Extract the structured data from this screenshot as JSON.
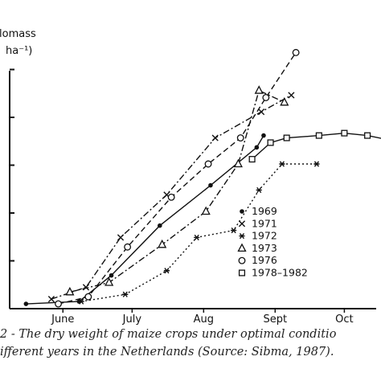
{
  "chart_data": {
    "type": "line",
    "ylabel_lines": [
      "lomass",
      "ha⁻¹)"
    ],
    "x_ticks": [
      "June",
      "July",
      "Aug",
      "Sept",
      "Oct"
    ],
    "x_range": [
      "May 25",
      "Oct 31"
    ],
    "y_range": [
      0,
      1
    ],
    "series": [
      {
        "name": "1969",
        "marker": "filled-circle",
        "dash": "solid",
        "points": [
          [
            "May 30",
            0.01
          ],
          [
            "June 22",
            0.02
          ],
          [
            "July 6",
            0.13
          ],
          [
            "July 27",
            0.34
          ],
          [
            "Aug 18",
            0.51
          ],
          [
            "Sept 7",
            0.67
          ],
          [
            "Sept 10",
            0.72
          ]
        ]
      },
      {
        "name": "1971",
        "marker": "x",
        "dash": "dashdot",
        "points": [
          [
            "June 10",
            0.03
          ],
          [
            "June 25",
            0.08
          ],
          [
            "July 10",
            0.29
          ],
          [
            "July 30",
            0.47
          ],
          [
            "Aug 20",
            0.71
          ],
          [
            "Sept 9",
            0.82
          ],
          [
            "Sept 22",
            0.89
          ]
        ]
      },
      {
        "name": "1972",
        "marker": "asterisk",
        "dash": "dotted",
        "points": [
          [
            "June 23",
            0.02
          ],
          [
            "July 12",
            0.05
          ],
          [
            "July 30",
            0.15
          ],
          [
            "Aug 12",
            0.29
          ],
          [
            "Aug 28",
            0.32
          ],
          [
            "Sept 8",
            0.49
          ],
          [
            "Sept 18",
            0.6
          ],
          [
            "Oct 3",
            0.6
          ]
        ]
      },
      {
        "name": "1973",
        "marker": "triangle",
        "dash": "dashdot",
        "points": [
          [
            "June 18",
            0.06
          ],
          [
            "July 5",
            0.1
          ],
          [
            "July 28",
            0.26
          ],
          [
            "Aug 16",
            0.4
          ],
          [
            "Aug 30",
            0.6
          ],
          [
            "Sept 8",
            0.91
          ],
          [
            "Sept 19",
            0.86
          ]
        ]
      },
      {
        "name": "1976",
        "marker": "open-circle",
        "dash": "dashed",
        "points": [
          [
            "June 13",
            0.01
          ],
          [
            "June 26",
            0.04
          ],
          [
            "July 13",
            0.25
          ],
          [
            "Aug 1",
            0.46
          ],
          [
            "Aug 17",
            0.6
          ],
          [
            "Aug 31",
            0.71
          ],
          [
            "Sept 11",
            0.88
          ],
          [
            "Sept 24",
            1.07
          ]
        ]
      },
      {
        "name": "1978-1982",
        "marker": "open-square",
        "dash": "solid",
        "points": [
          [
            "Sept 5",
            0.62
          ],
          [
            "Sept 13",
            0.69
          ],
          [
            "Sept 20",
            0.71
          ],
          [
            "Oct 4",
            0.72
          ],
          [
            "Oct 15",
            0.73
          ],
          [
            "Oct 25",
            0.72
          ],
          [
            "Nov 4",
            0.7
          ]
        ]
      }
    ],
    "legend": {
      "placement": "right",
      "entries": [
        "1969",
        "1971",
        "1972",
        "1973",
        "1976",
        "1978–1982"
      ]
    },
    "grid": false
  },
  "caption": {
    "line1": "2 - The dry weight of maize crops under optimal conditio",
    "line2": "ifferent years in the Netherlands (Source: Sibma, 1987)."
  }
}
